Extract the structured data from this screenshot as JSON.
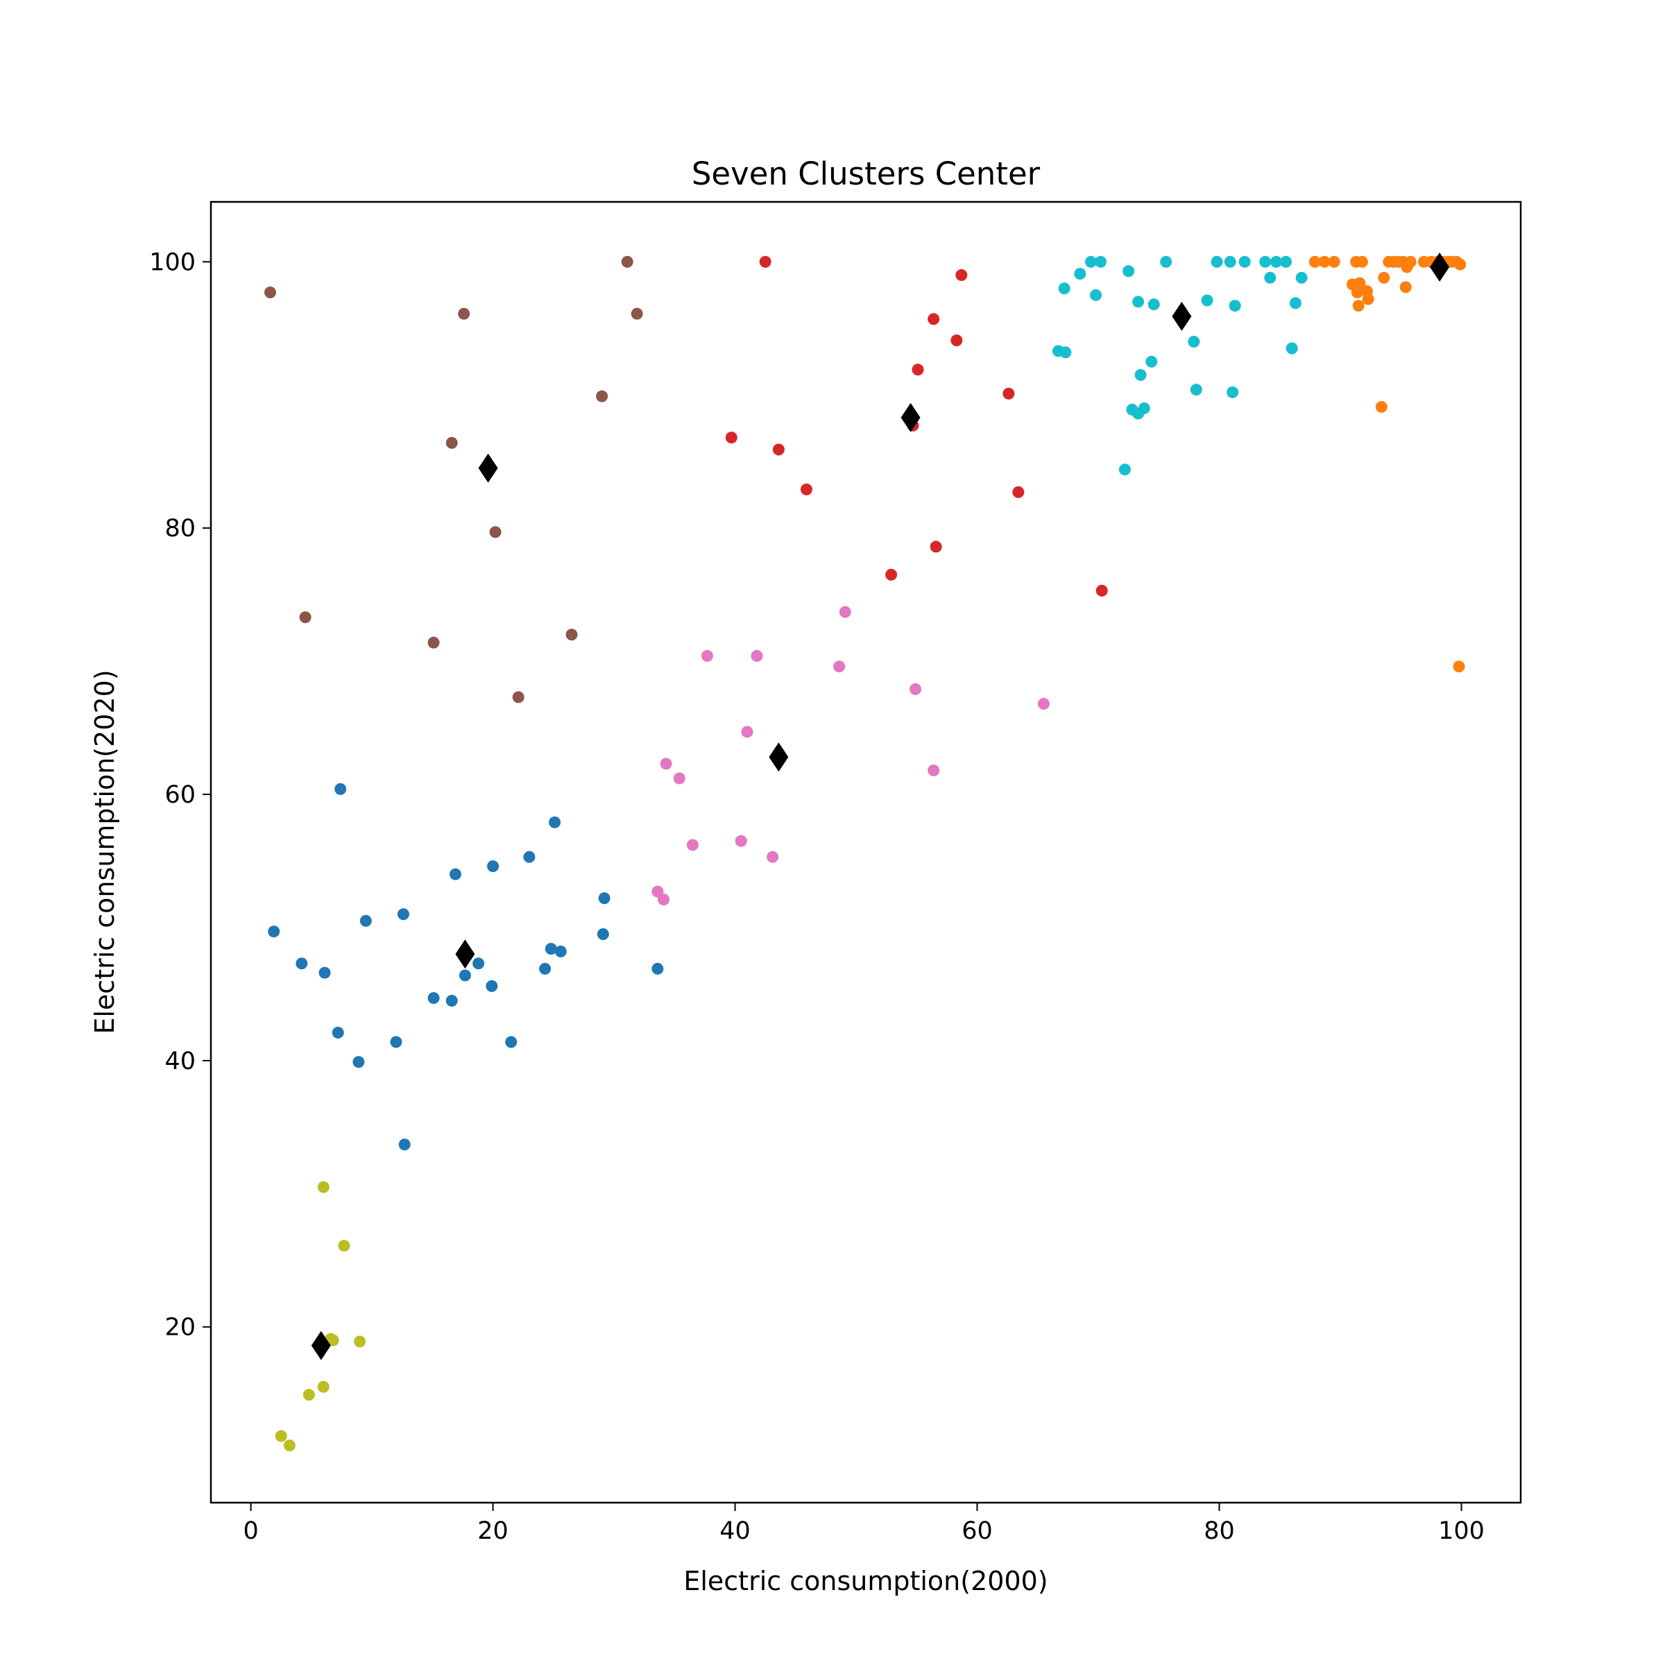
{
  "chart_data": {
    "type": "scatter",
    "title": "Seven Clusters Center",
    "xlabel": "Electric consumption(2000)",
    "ylabel": "Electric consumption(2020)",
    "xlim": [
      -3.3,
      104.9
    ],
    "ylim": [
      6.8,
      104.5
    ],
    "xticks": [
      0,
      20,
      40,
      60,
      80,
      100
    ],
    "yticks": [
      20,
      40,
      60,
      80,
      100
    ],
    "grid": false,
    "legend": "none",
    "series": [
      {
        "name": "cluster-blue",
        "color": "#1f77b4",
        "points": [
          [
            1.9,
            49.7
          ],
          [
            4.2,
            47.3
          ],
          [
            6.1,
            46.6
          ],
          [
            7.2,
            42.1
          ],
          [
            7.4,
            60.4
          ],
          [
            8.9,
            39.9
          ],
          [
            9.5,
            50.5
          ],
          [
            12.0,
            41.4
          ],
          [
            12.6,
            51.0
          ],
          [
            12.7,
            33.7
          ],
          [
            15.1,
            44.7
          ],
          [
            16.6,
            44.5
          ],
          [
            16.9,
            54.0
          ],
          [
            17.7,
            46.4
          ],
          [
            18.8,
            47.3
          ],
          [
            20.0,
            54.6
          ],
          [
            19.9,
            45.6
          ],
          [
            21.5,
            41.4
          ],
          [
            23.0,
            55.3
          ],
          [
            24.3,
            46.9
          ],
          [
            24.8,
            48.4
          ],
          [
            25.1,
            57.9
          ],
          [
            25.6,
            48.2
          ],
          [
            29.1,
            49.5
          ],
          [
            29.2,
            52.2
          ],
          [
            33.6,
            46.9
          ]
        ]
      },
      {
        "name": "cluster-orange",
        "color": "#ff7f0e",
        "points": [
          [
            87.9,
            100
          ],
          [
            88.7,
            100
          ],
          [
            89.5,
            100
          ],
          [
            91.3,
            100
          ],
          [
            91.8,
            100
          ],
          [
            91.0,
            98.3
          ],
          [
            91.6,
            98.4
          ],
          [
            91.4,
            97.7
          ],
          [
            92.2,
            97.8
          ],
          [
            92.3,
            97.2
          ],
          [
            91.5,
            96.7
          ],
          [
            93.4,
            89.1
          ],
          [
            93.6,
            98.8
          ],
          [
            94.0,
            100
          ],
          [
            94.4,
            100
          ],
          [
            94.8,
            100
          ],
          [
            95.2,
            100
          ],
          [
            95.5,
            99.6
          ],
          [
            95.8,
            100
          ],
          [
            95.4,
            98.1
          ],
          [
            96.9,
            100
          ],
          [
            97.5,
            100
          ],
          [
            98.0,
            100
          ],
          [
            98.5,
            100
          ],
          [
            98.9,
            100
          ],
          [
            99.2,
            100
          ],
          [
            99.6,
            100
          ],
          [
            99.9,
            99.8
          ],
          [
            99.8,
            69.6
          ]
        ]
      },
      {
        "name": "cluster-red",
        "color": "#d62728",
        "points": [
          [
            42.5,
            100
          ],
          [
            39.7,
            86.8
          ],
          [
            43.6,
            85.9
          ],
          [
            45.9,
            82.9
          ],
          [
            52.9,
            76.5
          ],
          [
            54.7,
            87.7
          ],
          [
            55.1,
            91.9
          ],
          [
            56.4,
            95.7
          ],
          [
            56.6,
            78.6
          ],
          [
            58.3,
            94.1
          ],
          [
            58.7,
            99.0
          ],
          [
            62.6,
            90.1
          ],
          [
            63.4,
            82.7
          ],
          [
            70.3,
            75.3
          ]
        ]
      },
      {
        "name": "cluster-brown",
        "color": "#8c564b",
        "points": [
          [
            1.6,
            97.7
          ],
          [
            4.5,
            73.3
          ],
          [
            15.1,
            71.4
          ],
          [
            16.6,
            86.4
          ],
          [
            17.6,
            96.1
          ],
          [
            20.2,
            79.7
          ],
          [
            22.1,
            67.3
          ],
          [
            26.5,
            72.0
          ],
          [
            29.0,
            89.9
          ],
          [
            31.1,
            100
          ],
          [
            31.9,
            96.1
          ]
        ]
      },
      {
        "name": "cluster-pink",
        "color": "#e377c2",
        "points": [
          [
            33.6,
            52.7
          ],
          [
            34.1,
            52.1
          ],
          [
            34.3,
            62.3
          ],
          [
            35.4,
            61.2
          ],
          [
            36.5,
            56.2
          ],
          [
            37.7,
            70.4
          ],
          [
            40.5,
            56.5
          ],
          [
            41.0,
            64.7
          ],
          [
            41.8,
            70.4
          ],
          [
            43.1,
            55.3
          ],
          [
            48.6,
            69.6
          ],
          [
            49.1,
            73.7
          ],
          [
            54.9,
            67.9
          ],
          [
            56.4,
            61.8
          ],
          [
            65.5,
            66.8
          ]
        ]
      },
      {
        "name": "cluster-olive",
        "color": "#bcbd22",
        "points": [
          [
            2.5,
            11.8
          ],
          [
            3.2,
            11.1
          ],
          [
            4.8,
            14.9
          ],
          [
            6.0,
            15.5
          ],
          [
            6.0,
            30.5
          ],
          [
            6.6,
            19.1
          ],
          [
            6.8,
            19.0
          ],
          [
            7.7,
            26.1
          ],
          [
            9.0,
            18.9
          ]
        ]
      },
      {
        "name": "cluster-cyan",
        "color": "#17becf",
        "points": [
          [
            66.7,
            93.3
          ],
          [
            67.2,
            98.0
          ],
          [
            67.3,
            93.2
          ],
          [
            68.5,
            99.1
          ],
          [
            69.4,
            100
          ],
          [
            69.8,
            97.5
          ],
          [
            70.2,
            100
          ],
          [
            72.2,
            84.4
          ],
          [
            72.5,
            99.3
          ],
          [
            72.8,
            88.9
          ],
          [
            73.3,
            97.0
          ],
          [
            73.3,
            88.6
          ],
          [
            73.5,
            91.5
          ],
          [
            73.8,
            89.0
          ],
          [
            74.4,
            92.5
          ],
          [
            74.6,
            96.8
          ],
          [
            75.6,
            100
          ],
          [
            77.9,
            94.0
          ],
          [
            78.1,
            90.4
          ],
          [
            79.0,
            97.1
          ],
          [
            79.8,
            100
          ],
          [
            80.9,
            100
          ],
          [
            81.1,
            90.2
          ],
          [
            81.3,
            96.7
          ],
          [
            82.1,
            100
          ],
          [
            83.8,
            100
          ],
          [
            84.2,
            98.8
          ],
          [
            84.7,
            100
          ],
          [
            85.5,
            100
          ],
          [
            86.0,
            93.5
          ],
          [
            86.3,
            96.9
          ],
          [
            86.8,
            98.8
          ]
        ]
      }
    ],
    "centers": {
      "name": "centers",
      "color": "#000000",
      "marker": "diamond",
      "points": [
        [
          19.6,
          84.5
        ],
        [
          17.7,
          48.0
        ],
        [
          5.8,
          18.6
        ],
        [
          43.6,
          62.8
        ],
        [
          54.5,
          88.3
        ],
        [
          76.9,
          95.9
        ],
        [
          98.2,
          99.6
        ]
      ]
    }
  }
}
